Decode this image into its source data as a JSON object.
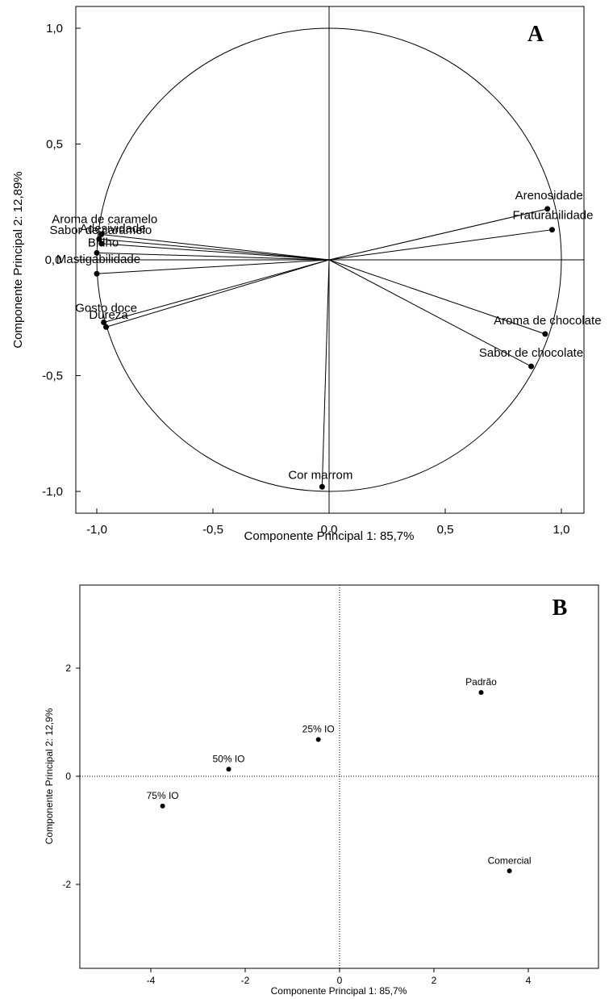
{
  "chart_data": [
    {
      "type": "scatter",
      "panel_letter": "A",
      "xlabel": "Componente Principal 1: 85,7%",
      "ylabel": "Componente Principal 2: 12,89%",
      "xlim": [
        -1.1,
        1.1
      ],
      "ylim": [
        -1.1,
        1.0
      ],
      "x_ticks": [
        -1.0,
        -0.5,
        0.0,
        0.5,
        1.0
      ],
      "x_tick_labels": [
        "-1,0",
        "-0,5",
        "0,0",
        "0,5",
        "1,0"
      ],
      "y_ticks": [
        -1.0,
        -0.5,
        0.5,
        1.0
      ],
      "y_tick_labels": [
        "-1,0",
        "-0,5",
        "0,5",
        "1,0"
      ],
      "y_zero_label": "0,0",
      "unit_circle": true,
      "grid": false,
      "points": [
        {
          "label": "Aroma de caramelo",
          "x": -0.98,
          "y": 0.11
        },
        {
          "label": "Sabor de caramelo",
          "x": -0.99,
          "y": 0.09
        },
        {
          "label": "Adesividade",
          "x": -0.98,
          "y": 0.07
        },
        {
          "label": "Brilho",
          "x": -1.0,
          "y": 0.03
        },
        {
          "label": "Mastigabilidade",
          "x": -1.0,
          "y": -0.06
        },
        {
          "label": "Gosto doce",
          "x": -0.97,
          "y": -0.27
        },
        {
          "label": "Dureza",
          "x": -0.96,
          "y": -0.29
        },
        {
          "label": "Arenosidade",
          "x": 0.94,
          "y": 0.22
        },
        {
          "label": "Fraturabilidade",
          "x": 0.96,
          "y": 0.13
        },
        {
          "label": "Aroma de chocolate",
          "x": 0.93,
          "y": -0.32
        },
        {
          "label": "Sabor de chocolate",
          "x": 0.87,
          "y": -0.46
        },
        {
          "label": "Cor marrom",
          "x": -0.03,
          "y": -0.98
        }
      ]
    },
    {
      "type": "scatter",
      "panel_letter": "B",
      "xlabel": "Componente Principal 1: 85,7%",
      "ylabel": "Componente Principal 2: 12,9%",
      "xlim": [
        -5.5,
        5.5
      ],
      "ylim": [
        -3.0,
        3.0
      ],
      "x_ticks": [
        -4,
        -2,
        0,
        2,
        4
      ],
      "x_tick_labels": [
        "-4",
        "-2",
        "0",
        "2",
        "4"
      ],
      "y_ticks": [
        -2,
        0,
        2
      ],
      "y_tick_labels": [
        "-2",
        "0",
        "2"
      ],
      "grid": false,
      "zero_lines": "dotted",
      "points": [
        {
          "label": "Padrão",
          "x": 3.0,
          "y": 1.55
        },
        {
          "label": "25% IO",
          "x": -0.45,
          "y": 0.68
        },
        {
          "label": "50% IO",
          "x": -2.35,
          "y": 0.13
        },
        {
          "label": "75% IO",
          "x": -3.75,
          "y": -0.55
        },
        {
          "label": "Comercial",
          "x": 3.6,
          "y": -1.75
        }
      ]
    }
  ]
}
